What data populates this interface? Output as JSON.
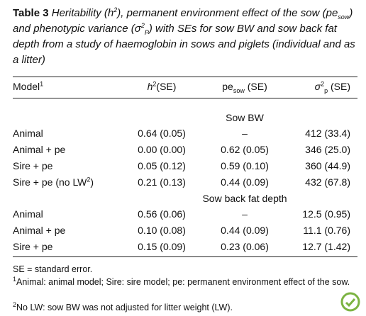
{
  "caption": {
    "label": "Table 3",
    "text": [
      {
        "t": "Heritability (h"
      },
      {
        "t": "2",
        "s": "sup"
      },
      {
        "t": "), permanent environment effect of the sow (pe"
      },
      {
        "t": "sow",
        "s": "sub"
      },
      {
        "t": ") and phenotypic variance (σ"
      },
      {
        "t": "2",
        "s": "sup"
      },
      {
        "t": "P",
        "s": "sub"
      },
      {
        "t": ") with SEs for sow BW and sow back fat depth from a study of haemoglobin in sows and piglets (individual and as a litter)"
      }
    ]
  },
  "table": {
    "header": [
      [
        {
          "t": "Model"
        },
        {
          "t": "1",
          "s": "sup"
        }
      ],
      [
        {
          "t": "h",
          "s": "i"
        },
        {
          "t": "2",
          "s": "sup"
        },
        {
          "t": "(SE)"
        }
      ],
      [
        {
          "t": "pe"
        },
        {
          "t": "sow",
          "s": "sub"
        },
        {
          "t": " (SE)"
        }
      ],
      [
        {
          "t": "σ",
          "s": "i"
        },
        {
          "t": "2",
          "s": "sup"
        },
        {
          "t": "p",
          "s": "sub"
        },
        {
          "t": " (SE)"
        }
      ]
    ],
    "sections": [
      {
        "title": "Sow BW",
        "rows": [
          [
            "Animal",
            "0.64 (0.05)",
            "–",
            "412 (33.4)"
          ],
          [
            "Animal + pe",
            "0.00 (0.00)",
            "0.62 (0.05)",
            "346 (25.0)"
          ],
          [
            "Sire + pe",
            "0.05 (0.12)",
            "0.59 (0.10)",
            "360 (44.9)"
          ],
          [
            [
              {
                "t": "Sire + pe (no LW"
              },
              {
                "t": "2",
                "s": "sup"
              },
              {
                "t": ")"
              }
            ],
            "0.21 (0.13)",
            "0.44 (0.09)",
            "432 (67.8)"
          ]
        ]
      },
      {
        "title": "Sow back fat depth",
        "rows": [
          [
            "Animal",
            "0.56 (0.06)",
            "–",
            "12.5 (0.95)"
          ],
          [
            "Animal + pe",
            "0.10 (0.08)",
            "0.44 (0.09)",
            "11.1 (0.76)"
          ],
          [
            "Sire + pe",
            "0.15 (0.09)",
            "0.23 (0.06)",
            "12.7 (1.42)"
          ]
        ]
      }
    ]
  },
  "footnotes": [
    [
      {
        "t": "SE = standard error."
      }
    ],
    [
      {
        "t": "1",
        "s": "sup"
      },
      {
        "t": "Animal: animal model; Sire: sire model; pe: permanent environment effect of the sow."
      }
    ],
    [
      {
        "t": "2",
        "s": "sup"
      },
      {
        "t": "No LW: sow BW was not adjusted for litter weight (LW)."
      }
    ]
  ]
}
